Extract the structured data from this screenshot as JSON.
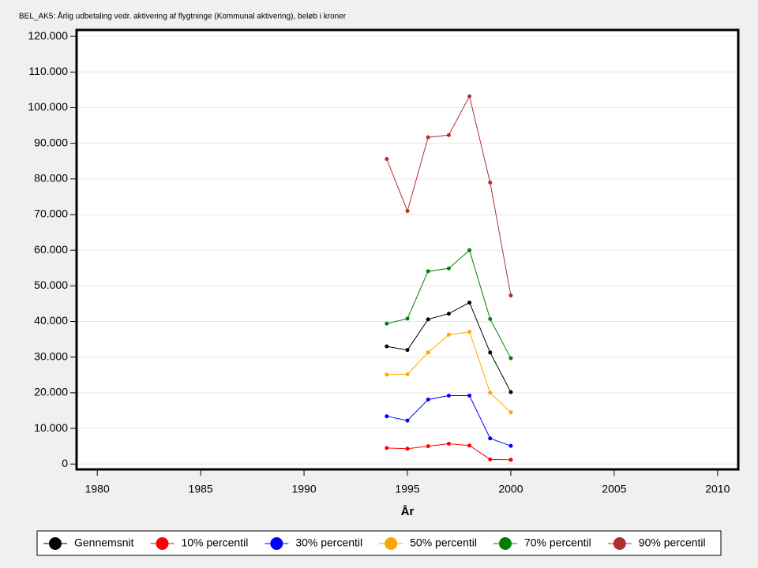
{
  "chart_data": {
    "type": "line",
    "title": "BEL_AK5: Årlig udbetaling vedr. aktivering af flygtninge (Kommunal aktivering), beløb i kroner",
    "x_label": "År",
    "x": [
      1994,
      1995,
      1996,
      1997,
      1998,
      1999,
      2000
    ],
    "xlim": [
      1979,
      2011
    ],
    "xticks": [
      1980,
      1985,
      1990,
      1995,
      2000,
      2005,
      2010
    ],
    "ylim": [
      -1500,
      121800
    ],
    "yticks": [
      0,
      {
        "value": 10000,
        "label": "10.000"
      },
      {
        "value": 20000,
        "label": "20.000"
      },
      {
        "value": 30000,
        "label": "30.000"
      },
      {
        "value": 40000,
        "label": "40.000"
      },
      {
        "value": 50000,
        "label": "50.000"
      },
      {
        "value": 60000,
        "label": "60.000"
      },
      {
        "value": 70000,
        "label": "70.000"
      },
      {
        "value": 80000,
        "label": "80.000"
      },
      {
        "value": 90000,
        "label": "90.000"
      },
      {
        "value": 100000,
        "label": "100.000"
      },
      {
        "value": 110000,
        "label": "110.000"
      },
      {
        "value": 120000,
        "label": "120.000"
      }
    ],
    "grid": true,
    "legend": "bottom",
    "series": [
      {
        "name": "Gennemsnit",
        "color": "#000000",
        "values": [
          33000,
          32000,
          40600,
          42200,
          45300,
          31300,
          20200
        ]
      },
      {
        "name": "10% percentil",
        "color": "#ff0000",
        "values": [
          4500,
          4300,
          5000,
          5700,
          5200,
          1300,
          1200
        ]
      },
      {
        "name": "30% percentil",
        "color": "#0000ff",
        "values": [
          13400,
          12200,
          18100,
          19200,
          19200,
          7200,
          5100
        ]
      },
      {
        "name": "50% percentil",
        "color": "#ffa500",
        "values": [
          25100,
          25200,
          31300,
          36300,
          37100,
          20000,
          14500
        ]
      },
      {
        "name": "70% percentil",
        "color": "#008000",
        "values": [
          39400,
          40800,
          54100,
          54900,
          60000,
          40700,
          29700
        ]
      },
      {
        "name": "90% percentil",
        "color": "#b03030",
        "values": [
          85600,
          71000,
          91700,
          92300,
          103200,
          79000,
          47300
        ]
      }
    ]
  }
}
